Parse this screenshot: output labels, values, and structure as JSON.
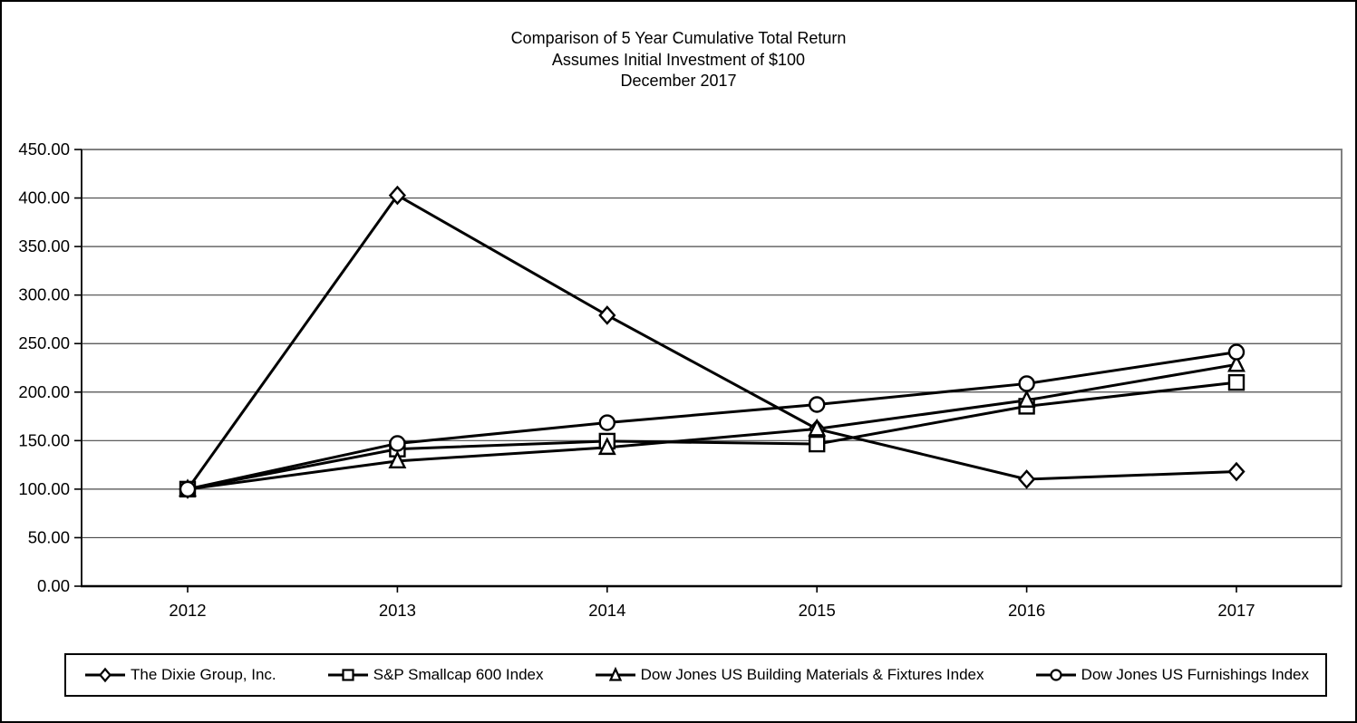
{
  "chart_data": {
    "type": "line",
    "title": "Comparison of 5 Year Cumulative Total Return",
    "subtitle": "Assumes Initial Investment of $100",
    "date_line": "December 2017",
    "x": [
      "2012",
      "2013",
      "2014",
      "2015",
      "2016",
      "2017"
    ],
    "xlabel": "",
    "ylabel": "",
    "ylim": [
      0,
      450
    ],
    "ytick_step": 50,
    "ytick_labels": [
      "0.00",
      "50.00",
      "100.00",
      "150.00",
      "200.00",
      "250.00",
      "300.00",
      "350.00",
      "400.00",
      "450.00"
    ],
    "grid": "horizontal",
    "legend_position": "bottom",
    "series": [
      {
        "name": "The Dixie Group, Inc.",
        "marker": "diamond",
        "values": [
          100.0,
          402.78,
          279.17,
          162.04,
          110.19,
          118.06
        ]
      },
      {
        "name": "S&P Smallcap 600 Index",
        "marker": "square",
        "values": [
          100.0,
          141.31,
          149.45,
          146.5,
          185.41,
          209.94
        ]
      },
      {
        "name": "Dow Jones US Building Materials & Fixtures Index",
        "marker": "triangle",
        "values": [
          100.0,
          128.99,
          142.95,
          162.1,
          191.63,
          228.44
        ]
      },
      {
        "name": "Dow Jones US Furnishings Index",
        "marker": "circle",
        "values": [
          100.0,
          147.07,
          168.5,
          187.19,
          208.72,
          241.26
        ]
      }
    ],
    "colors": {
      "line": "#000000",
      "marker_fill": "#ffffff",
      "grid": "#4a4a4a",
      "frame": "#808080",
      "axis": "#000000",
      "background": "#ffffff"
    }
  }
}
